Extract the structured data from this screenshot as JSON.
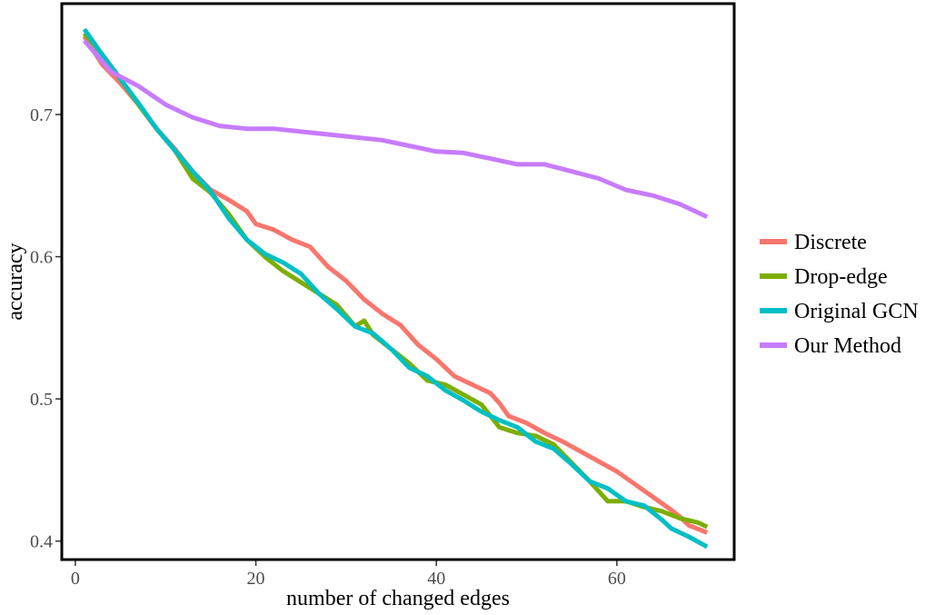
{
  "chart_data": {
    "type": "line",
    "title": "",
    "xlabel": "number of changed edges",
    "ylabel": "accuracy",
    "xlim": [
      -1.5,
      73
    ],
    "ylim": [
      0.387,
      0.778
    ],
    "xticks": [
      0,
      20,
      40,
      60
    ],
    "yticks": [
      0.4,
      0.5,
      0.6,
      0.7
    ],
    "xtick_labels": [
      "0",
      "20",
      "40",
      "60"
    ],
    "ytick_labels": [
      "0.4",
      "0.5",
      "0.6",
      "0.7"
    ],
    "grid": false,
    "legend_position": "right",
    "series": [
      {
        "name": "Discrete",
        "color": "#F8766D",
        "points": [
          [
            1,
            0.755
          ],
          [
            3,
            0.735
          ],
          [
            5,
            0.722
          ],
          [
            7,
            0.707
          ],
          [
            9,
            0.69
          ],
          [
            11,
            0.676
          ],
          [
            13,
            0.66
          ],
          [
            15,
            0.647
          ],
          [
            17,
            0.64
          ],
          [
            19,
            0.632
          ],
          [
            20,
            0.623
          ],
          [
            22,
            0.619
          ],
          [
            24,
            0.612
          ],
          [
            26,
            0.607
          ],
          [
            28,
            0.593
          ],
          [
            30,
            0.583
          ],
          [
            32,
            0.57
          ],
          [
            34,
            0.56
          ],
          [
            36,
            0.552
          ],
          [
            38,
            0.538
          ],
          [
            40,
            0.528
          ],
          [
            42,
            0.516
          ],
          [
            44,
            0.51
          ],
          [
            46,
            0.504
          ],
          [
            47,
            0.497
          ],
          [
            48,
            0.488
          ],
          [
            50,
            0.483
          ],
          [
            52,
            0.476
          ],
          [
            54,
            0.47
          ],
          [
            56,
            0.463
          ],
          [
            58,
            0.456
          ],
          [
            60,
            0.449
          ],
          [
            62,
            0.44
          ],
          [
            64,
            0.431
          ],
          [
            66,
            0.422
          ],
          [
            67,
            0.417
          ],
          [
            68,
            0.411
          ],
          [
            70,
            0.406
          ]
        ]
      },
      {
        "name": "Drop-edge",
        "color": "#7CAE00",
        "points": [
          [
            1,
            0.757
          ],
          [
            3,
            0.742
          ],
          [
            5,
            0.725
          ],
          [
            7,
            0.707
          ],
          [
            9,
            0.69
          ],
          [
            11,
            0.675
          ],
          [
            13,
            0.655
          ],
          [
            15,
            0.645
          ],
          [
            17,
            0.63
          ],
          [
            19,
            0.612
          ],
          [
            21,
            0.6
          ],
          [
            23,
            0.59
          ],
          [
            25,
            0.582
          ],
          [
            27,
            0.574
          ],
          [
            29,
            0.566
          ],
          [
            31,
            0.551
          ],
          [
            32,
            0.555
          ],
          [
            33,
            0.545
          ],
          [
            35,
            0.535
          ],
          [
            37,
            0.525
          ],
          [
            39,
            0.513
          ],
          [
            41,
            0.51
          ],
          [
            43,
            0.503
          ],
          [
            45,
            0.496
          ],
          [
            47,
            0.48
          ],
          [
            49,
            0.476
          ],
          [
            51,
            0.474
          ],
          [
            53,
            0.468
          ],
          [
            55,
            0.455
          ],
          [
            57,
            0.442
          ],
          [
            59,
            0.428
          ],
          [
            61,
            0.428
          ],
          [
            63,
            0.424
          ],
          [
            65,
            0.421
          ],
          [
            67,
            0.416
          ],
          [
            69,
            0.413
          ],
          [
            70,
            0.41
          ]
        ]
      },
      {
        "name": "Original GCN",
        "color": "#00BFC4",
        "points": [
          [
            1,
            0.76
          ],
          [
            3,
            0.742
          ],
          [
            5,
            0.725
          ],
          [
            7,
            0.708
          ],
          [
            9,
            0.69
          ],
          [
            11,
            0.675
          ],
          [
            13,
            0.66
          ],
          [
            15,
            0.646
          ],
          [
            17,
            0.627
          ],
          [
            19,
            0.612
          ],
          [
            21,
            0.602
          ],
          [
            23,
            0.596
          ],
          [
            25,
            0.588
          ],
          [
            27,
            0.574
          ],
          [
            29,
            0.563
          ],
          [
            31,
            0.551
          ],
          [
            33,
            0.546
          ],
          [
            35,
            0.535
          ],
          [
            37,
            0.522
          ],
          [
            39,
            0.516
          ],
          [
            41,
            0.506
          ],
          [
            43,
            0.499
          ],
          [
            45,
            0.491
          ],
          [
            47,
            0.485
          ],
          [
            49,
            0.48
          ],
          [
            51,
            0.47
          ],
          [
            53,
            0.465
          ],
          [
            55,
            0.454
          ],
          [
            57,
            0.442
          ],
          [
            59,
            0.437
          ],
          [
            61,
            0.428
          ],
          [
            63,
            0.425
          ],
          [
            65,
            0.415
          ],
          [
            66,
            0.409
          ],
          [
            68,
            0.403
          ],
          [
            70,
            0.396
          ]
        ]
      },
      {
        "name": "Our Method",
        "color": "#C77CFF",
        "points": [
          [
            1,
            0.752
          ],
          [
            4,
            0.73
          ],
          [
            7,
            0.72
          ],
          [
            10,
            0.707
          ],
          [
            13,
            0.698
          ],
          [
            16,
            0.692
          ],
          [
            19,
            0.69
          ],
          [
            22,
            0.69
          ],
          [
            25,
            0.688
          ],
          [
            28,
            0.686
          ],
          [
            31,
            0.684
          ],
          [
            34,
            0.682
          ],
          [
            37,
            0.678
          ],
          [
            40,
            0.674
          ],
          [
            43,
            0.673
          ],
          [
            46,
            0.669
          ],
          [
            49,
            0.665
          ],
          [
            52,
            0.665
          ],
          [
            55,
            0.66
          ],
          [
            58,
            0.655
          ],
          [
            61,
            0.647
          ],
          [
            64,
            0.643
          ],
          [
            67,
            0.637
          ],
          [
            70,
            0.628
          ]
        ]
      }
    ]
  }
}
